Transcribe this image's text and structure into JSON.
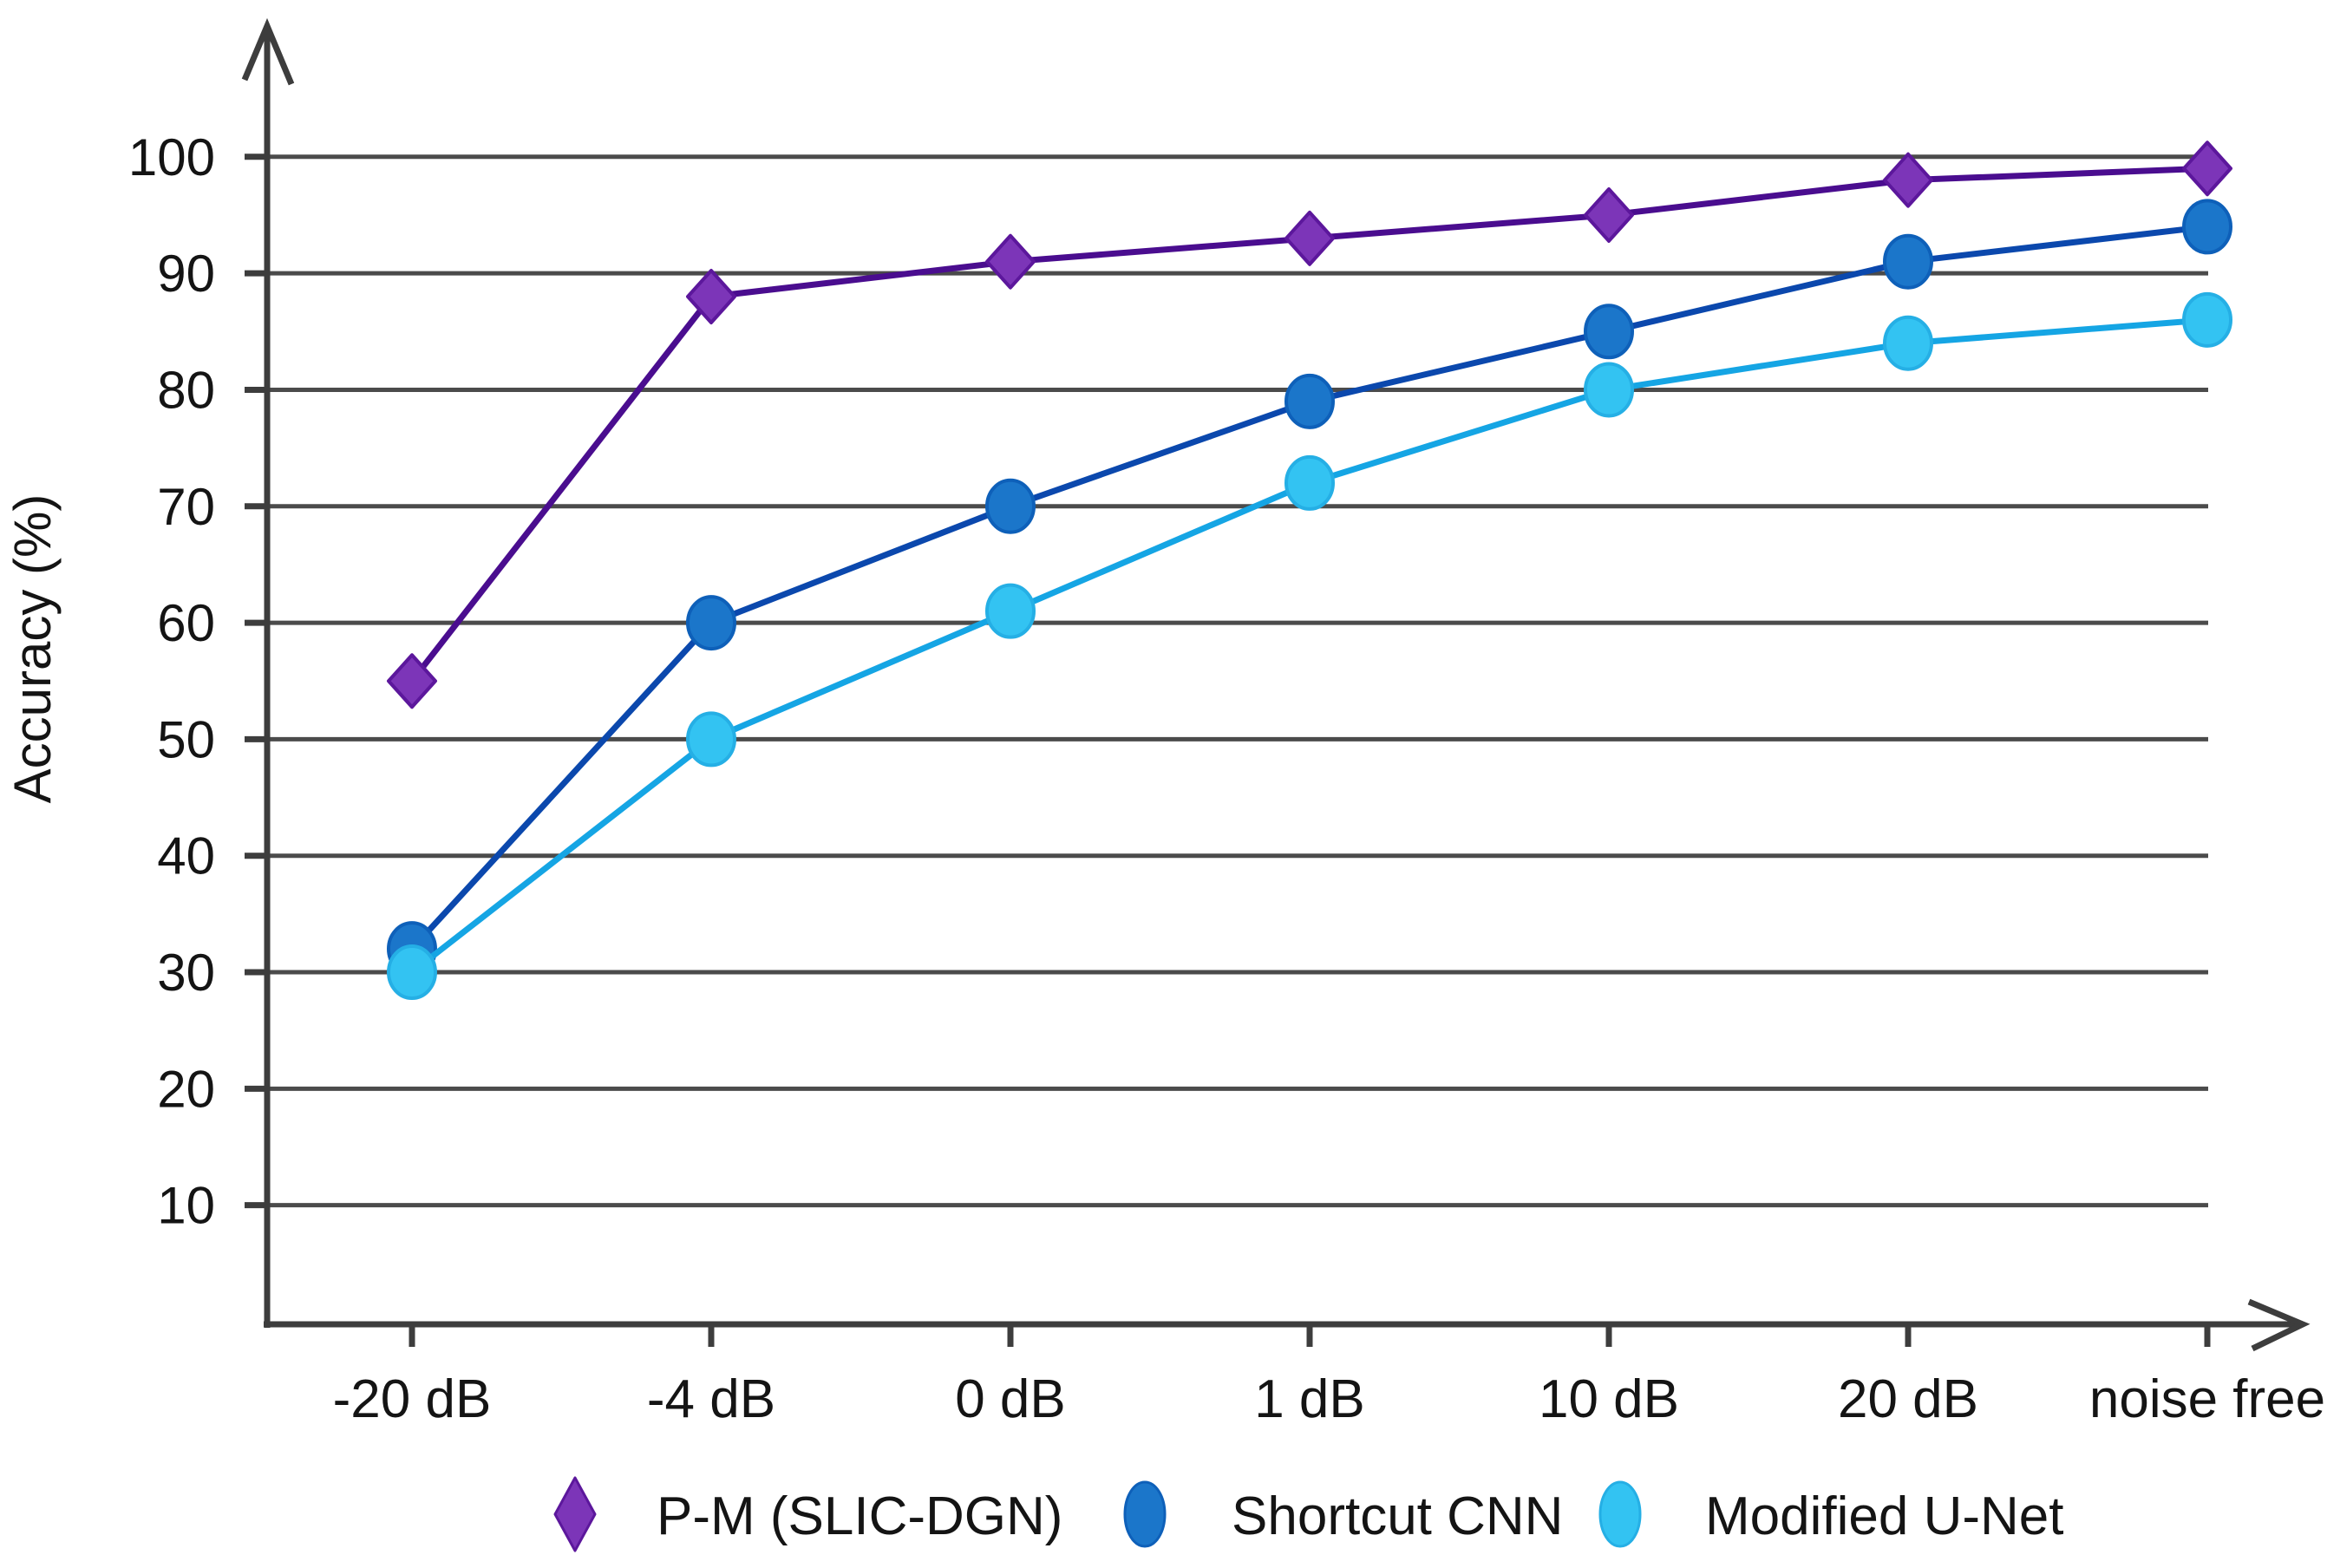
{
  "chart_data": {
    "type": "line",
    "title": "",
    "xlabel": "",
    "ylabel": "Accuracy (%)",
    "categories": [
      "-20 dB",
      "-4 dB",
      "0 dB",
      "1 dB",
      "10 dB",
      "20 dB",
      "noise free"
    ],
    "y_ticks": [
      10,
      20,
      30,
      40,
      50,
      60,
      70,
      80,
      90,
      100
    ],
    "ylim": [
      0,
      108
    ],
    "grid": "horizontal-only",
    "legend_position": "bottom",
    "series": [
      {
        "name": "P-M (SLIC-DGN)",
        "marker": "diamond",
        "values": [
          55,
          88,
          91,
          93,
          95,
          98,
          99
        ],
        "line_color": "#4a0d8f",
        "marker_fill": "#7c35b8",
        "marker_stroke": "#5c179c"
      },
      {
        "name": "Shortcut CNN",
        "marker": "circle",
        "values": [
          32,
          60,
          70,
          79,
          85,
          91,
          94
        ],
        "line_color": "#0b48ad",
        "marker_fill": "#1b76ca",
        "marker_stroke": "#0e60b9"
      },
      {
        "name": "Modified U-Net",
        "marker": "circle",
        "values": [
          30,
          50,
          61,
          72,
          80,
          84,
          86
        ],
        "line_color": "#15a5e4",
        "marker_fill": "#33c3f2",
        "marker_stroke": "#25afe5"
      }
    ],
    "colors": {
      "axis": "#3d3d3d",
      "grid": "#4b4b4b",
      "text": "#141414",
      "background": "#ffffff"
    }
  }
}
